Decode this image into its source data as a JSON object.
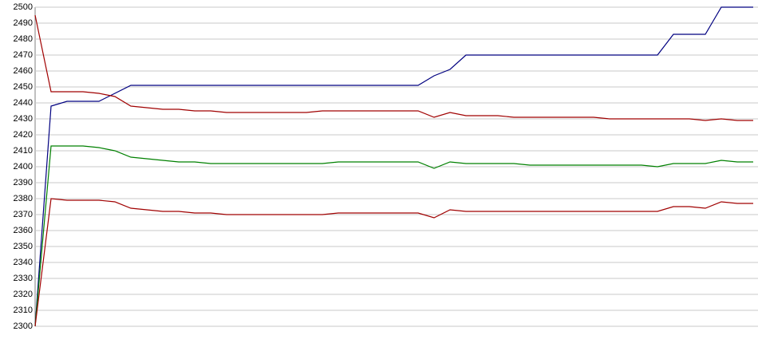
{
  "chart_data": {
    "type": "line",
    "categories": [
      null,
      null,
      null,
      null,
      null,
      null,
      null,
      null,
      null,
      null,
      null,
      null,
      null,
      null,
      null,
      null,
      null,
      null,
      null,
      null,
      null,
      null,
      null,
      null,
      null,
      null,
      null,
      null,
      null,
      null,
      null,
      null,
      null,
      null,
      null,
      null,
      null,
      null,
      null,
      null,
      null,
      null,
      null,
      null,
      null,
      null
    ],
    "series": [
      {
        "color": "#000080",
        "values": [
          2300,
          2438,
          2441,
          2441,
          2441,
          2446,
          2451,
          2451,
          2451,
          2451,
          2451,
          2451,
          2451,
          2451,
          2451,
          2451,
          2451,
          2451,
          2451,
          2451,
          2451,
          2451,
          2451,
          2451,
          2451,
          2457,
          2461,
          2470,
          2470,
          2470,
          2470,
          2470,
          2470,
          2470,
          2470,
          2470,
          2470,
          2470,
          2470,
          2470,
          2483,
          2483,
          2483,
          2500,
          2500,
          2500
        ]
      },
      {
        "color": "#a00000",
        "values": [
          2495,
          2447,
          2447,
          2447,
          2446,
          2444,
          2438,
          2437,
          2436,
          2436,
          2435,
          2435,
          2434,
          2434,
          2434,
          2434,
          2434,
          2434,
          2435,
          2435,
          2435,
          2435,
          2435,
          2435,
          2435,
          2431,
          2434,
          2432,
          2432,
          2432,
          2431,
          2431,
          2431,
          2431,
          2431,
          2431,
          2430,
          2430,
          2430,
          2430,
          2430,
          2430,
          2429,
          2430,
          2429,
          2429
        ]
      },
      {
        "color": "#008000",
        "values": [
          2300,
          2413,
          2413,
          2413,
          2412,
          2410,
          2406,
          2405,
          2404,
          2403,
          2403,
          2402,
          2402,
          2402,
          2402,
          2402,
          2402,
          2402,
          2402,
          2403,
          2403,
          2403,
          2403,
          2403,
          2403,
          2399,
          2403,
          2402,
          2402,
          2402,
          2402,
          2401,
          2401,
          2401,
          2401,
          2401,
          2401,
          2401,
          2401,
          2400,
          2402,
          2402,
          2402,
          2404,
          2403,
          2403
        ]
      },
      {
        "color": "#a00000",
        "values": [
          2300,
          2380,
          2379,
          2379,
          2379,
          2378,
          2374,
          2373,
          2372,
          2372,
          2371,
          2371,
          2370,
          2370,
          2370,
          2370,
          2370,
          2370,
          2370,
          2371,
          2371,
          2371,
          2371,
          2371,
          2371,
          2368,
          2373,
          2372,
          2372,
          2372,
          2372,
          2372,
          2372,
          2372,
          2372,
          2372,
          2372,
          2372,
          2372,
          2372,
          2375,
          2375,
          2374,
          2378,
          2377,
          2377
        ]
      }
    ],
    "ylim": [
      2300,
      2500
    ],
    "yticks": [
      2300,
      2310,
      2320,
      2330,
      2340,
      2350,
      2360,
      2370,
      2380,
      2390,
      2400,
      2410,
      2420,
      2430,
      2440,
      2450,
      2460,
      2470,
      2480,
      2490,
      2500
    ],
    "grid": true
  }
}
